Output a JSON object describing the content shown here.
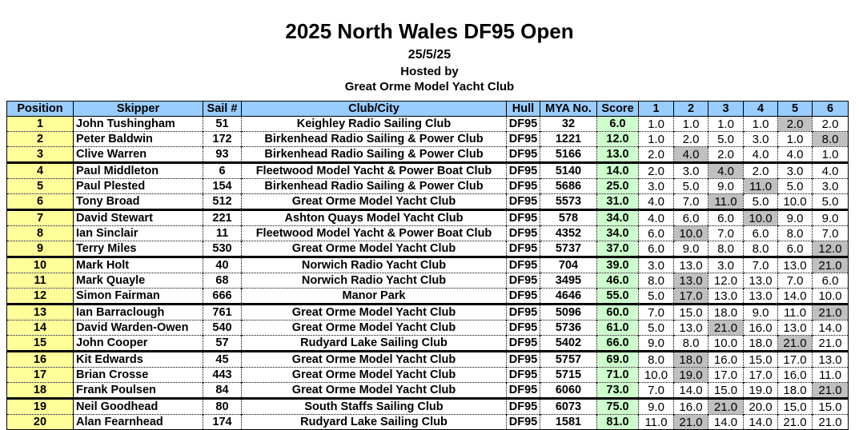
{
  "header": {
    "title": "2025 North Wales DF95 Open",
    "date": "25/5/25",
    "hosted": "Hosted by",
    "host_club": "Great Orme Model Yacht Club"
  },
  "columns": [
    "Position",
    "Skipper",
    "Sail #",
    "Club/City",
    "Hull",
    "MYA No.",
    "Score",
    "1",
    "2",
    "3",
    "4",
    "5",
    "6"
  ],
  "colors": {
    "header": "#99ccff",
    "position": "#ffff99",
    "score": "#ccffcc",
    "discard": "#c0c0c0"
  },
  "rows": [
    {
      "pos": "1",
      "skipper": "John Tushingham",
      "sail": "51",
      "club": "Keighley Radio Sailing Club",
      "hull": "DF95",
      "mya": "32",
      "score": "6.0",
      "races": [
        "1.0",
        "1.0",
        "1.0",
        "1.0",
        "2.0",
        "2.0"
      ],
      "discard": 4
    },
    {
      "pos": "2",
      "skipper": "Peter Baldwin",
      "sail": "172",
      "club": "Birkenhead Radio Sailing &  Power Club",
      "hull": "DF95",
      "mya": "1221",
      "score": "12.0",
      "races": [
        "1.0",
        "2.0",
        "5.0",
        "3.0",
        "1.0",
        "8.0"
      ],
      "discard": 5
    },
    {
      "pos": "3",
      "skipper": "Clive Warren",
      "sail": "93",
      "club": "Birkenhead Radio Sailing &  Power Club",
      "hull": "DF95",
      "mya": "5166",
      "score": "13.0",
      "races": [
        "2.0",
        "4.0",
        "2.0",
        "4.0",
        "4.0",
        "1.0"
      ],
      "discard": 1
    },
    {
      "pos": "4",
      "skipper": "Paul Middleton",
      "sail": "6",
      "club": "Fleetwood Model Yacht & Power Boat Club",
      "hull": "DF95",
      "mya": "5140",
      "score": "14.0",
      "races": [
        "2.0",
        "3.0",
        "4.0",
        "2.0",
        "3.0",
        "4.0"
      ],
      "discard": 2
    },
    {
      "pos": "5",
      "skipper": "Paul Plested",
      "sail": "154",
      "club": "Birkenhead Radio Sailing &  Power Club",
      "hull": "DF95",
      "mya": "5686",
      "score": "25.0",
      "races": [
        "3.0",
        "5.0",
        "9.0",
        "11.0",
        "5.0",
        "3.0"
      ],
      "discard": 3
    },
    {
      "pos": "6",
      "skipper": "Tony Broad",
      "sail": "512",
      "club": "Great Orme Model Yacht Club",
      "hull": "DF95",
      "mya": "5573",
      "score": "31.0",
      "races": [
        "4.0",
        "7.0",
        "11.0",
        "5.0",
        "10.0",
        "5.0"
      ],
      "discard": 2
    },
    {
      "pos": "7",
      "skipper": "David Stewart",
      "sail": "221",
      "club": "Ashton Quays Model Yacht Club",
      "hull": "DF95",
      "mya": "578",
      "score": "34.0",
      "races": [
        "4.0",
        "6.0",
        "6.0",
        "10.0",
        "9.0",
        "9.0"
      ],
      "discard": 3
    },
    {
      "pos": "8",
      "skipper": "Ian Sinclair",
      "sail": "11",
      "club": "Fleetwood Model Yacht & Power Boat Club",
      "hull": "DF95",
      "mya": "4352",
      "score": "34.0",
      "races": [
        "6.0",
        "10.0",
        "7.0",
        "6.0",
        "8.0",
        "7.0"
      ],
      "discard": 1
    },
    {
      "pos": "9",
      "skipper": "Terry Miles",
      "sail": "530",
      "club": "Great Orme Model Yacht Club",
      "hull": "DF95",
      "mya": "5737",
      "score": "37.0",
      "races": [
        "6.0",
        "9.0",
        "8.0",
        "8.0",
        "6.0",
        "12.0"
      ],
      "discard": 5
    },
    {
      "pos": "10",
      "skipper": "Mark Holt",
      "sail": "40",
      "club": "Norwich Radio Yacht Club",
      "hull": "DF95",
      "mya": "704",
      "score": "39.0",
      "races": [
        "3.0",
        "13.0",
        "3.0",
        "7.0",
        "13.0",
        "21.0"
      ],
      "discard": 5
    },
    {
      "pos": "11",
      "skipper": "Mark Quayle",
      "sail": "68",
      "club": "Norwich Radio Yacht Club",
      "hull": "DF95",
      "mya": "3495",
      "score": "46.0",
      "races": [
        "8.0",
        "13.0",
        "12.0",
        "13.0",
        "7.0",
        "6.0"
      ],
      "discard": 1
    },
    {
      "pos": "12",
      "skipper": "Simon Fairman",
      "sail": "666",
      "club": "Manor Park",
      "hull": "DF95",
      "mya": "4646",
      "score": "55.0",
      "races": [
        "5.0",
        "17.0",
        "13.0",
        "13.0",
        "14.0",
        "10.0"
      ],
      "discard": 1
    },
    {
      "pos": "13",
      "skipper": "Ian Barraclough",
      "sail": "761",
      "club": "Great Orme Model Yacht Club",
      "hull": "DF95",
      "mya": "5096",
      "score": "60.0",
      "races": [
        "7.0",
        "15.0",
        "18.0",
        "9.0",
        "11.0",
        "21.0"
      ],
      "discard": 5
    },
    {
      "pos": "14",
      "skipper": "David Warden-Owen",
      "sail": "540",
      "club": "Great Orme Model Yacht Club",
      "hull": "DF95",
      "mya": "5736",
      "score": "61.0",
      "races": [
        "5.0",
        "13.0",
        "21.0",
        "16.0",
        "13.0",
        "14.0"
      ],
      "discard": 2
    },
    {
      "pos": "15",
      "skipper": "John Cooper",
      "sail": "57",
      "club": "Rudyard Lake Sailing Club",
      "hull": "DF95",
      "mya": "5402",
      "score": "66.0",
      "races": [
        "9.0",
        "8.0",
        "10.0",
        "18.0",
        "21.0",
        "21.0"
      ],
      "discard": 4
    },
    {
      "pos": "16",
      "skipper": "Kit Edwards",
      "sail": "45",
      "club": "Great Orme Model Yacht Club",
      "hull": "DF95",
      "mya": "5757",
      "score": "69.0",
      "races": [
        "8.0",
        "18.0",
        "16.0",
        "15.0",
        "17.0",
        "13.0"
      ],
      "discard": 1
    },
    {
      "pos": "17",
      "skipper": "Brian Crosse",
      "sail": "443",
      "club": "Great Orme Model Yacht Club",
      "hull": "DF95",
      "mya": "5715",
      "score": "71.0",
      "races": [
        "10.0",
        "19.0",
        "17.0",
        "17.0",
        "16.0",
        "11.0"
      ],
      "discard": 1
    },
    {
      "pos": "18",
      "skipper": "Frank Poulsen",
      "sail": "84",
      "club": "Great Orme Model Yacht Club",
      "hull": "DF95",
      "mya": "6060",
      "score": "73.0",
      "races": [
        "7.0",
        "14.0",
        "15.0",
        "19.0",
        "18.0",
        "21.0"
      ],
      "discard": 5
    },
    {
      "pos": "19",
      "skipper": "Neil Goodhead",
      "sail": "80",
      "club": "South Staffs Sailing Club",
      "hull": "DF95",
      "mya": "6073",
      "score": "75.0",
      "races": [
        "9.0",
        "16.0",
        "21.0",
        "20.0",
        "15.0",
        "15.0"
      ],
      "discard": 2
    },
    {
      "pos": "20",
      "skipper": "Alan Fearnhead",
      "sail": "174",
      "club": "Rudyard Lake Sailing Club",
      "hull": "DF95",
      "mya": "1581",
      "score": "81.0",
      "races": [
        "11.0",
        "21.0",
        "14.0",
        "14.0",
        "21.0",
        "21.0"
      ],
      "discard": 1
    }
  ]
}
